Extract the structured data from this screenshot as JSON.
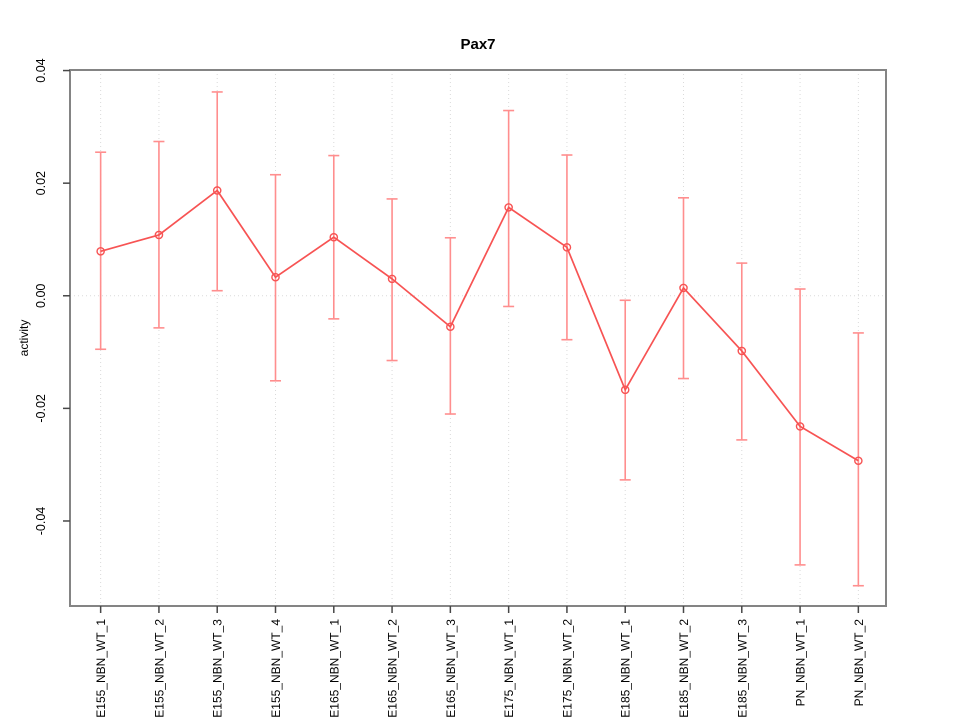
{
  "chart_data": {
    "type": "line",
    "title": "Pax7",
    "xlabel": "",
    "ylabel": "activity",
    "categories": [
      "E155_NBN_WT_1",
      "E155_NBN_WT_2",
      "E155_NBN_WT_3",
      "E155_NBN_WT_4",
      "E165_NBN_WT_1",
      "E165_NBN_WT_2",
      "E165_NBN_WT_3",
      "E175_NBN_WT_1",
      "E175_NBN_WT_2",
      "E185_NBN_WT_1",
      "E185_NBN_WT_2",
      "E185_NBN_WT_3",
      "PN_NBN_WT_1",
      "PN_NBN_WT_2"
    ],
    "series": [
      {
        "name": "activity",
        "values": [
          0.0079,
          0.0108,
          0.0187,
          0.0033,
          0.0104,
          0.003,
          -0.0055,
          0.0157,
          0.0086,
          -0.0167,
          0.0014,
          -0.0098,
          -0.0232,
          -0.0293
        ]
      }
    ],
    "error_low": [
      -0.0095,
      -0.0057,
      0.0009,
      -0.0151,
      -0.0041,
      -0.0115,
      -0.021,
      -0.0019,
      -0.0078,
      -0.0327,
      -0.0147,
      -0.0256,
      -0.0478,
      -0.0515
    ],
    "error_high": [
      0.0255,
      0.0274,
      0.0362,
      0.0215,
      0.0249,
      0.0172,
      0.0103,
      0.0329,
      0.025,
      -0.0008,
      0.0174,
      0.0058,
      0.0012,
      -0.0066
    ],
    "ylim": [
      -0.0551,
      0.0401
    ],
    "ytick_values": [
      0.04,
      0.02,
      0.0,
      -0.02,
      -0.04
    ],
    "ytick_labels": [
      "0.04",
      "0.02",
      "0.00",
      "-0.02",
      "-0.04"
    ],
    "grid": {
      "vertical_gridlines": true,
      "zero_line_dotted": true,
      "horizontal_gridlines": false
    },
    "legend": "none",
    "marker": "open-circle",
    "colors": {
      "line": "#f75353",
      "marker": "#f75353",
      "error_bar": "#ff8e8e",
      "grid": "#dadada",
      "frame": "#848484",
      "tick": "#474747",
      "text": "#000000",
      "background": "#ffffff"
    }
  }
}
